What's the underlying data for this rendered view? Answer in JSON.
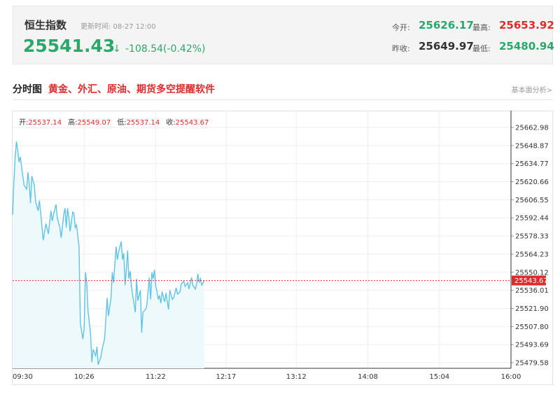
{
  "quote": {
    "name": "恒生指数",
    "update_time": "更新时间: 08-27 12:00",
    "last": "25541.43",
    "arrow": "↓",
    "change": "-108.54(-0.42%)",
    "open_label": "今开:",
    "open_value": "25626.17",
    "high_label": "最高:",
    "high_value": "25653.92",
    "prev_close_label": "昨收:",
    "prev_close_value": "25649.97",
    "low_label": "最低:",
    "low_value": "25480.94"
  },
  "colors": {
    "up": "#e02b2b",
    "down": "#2aa76a",
    "line": "#5ec3e6",
    "area": "#eef9fc",
    "ref_line": "#e02b2b"
  },
  "section": {
    "title": "分时图",
    "promo": "黄金、外汇、原油、期货多空提醒软件",
    "basic_analysis": "基本面分析>"
  },
  "ohlc": {
    "open_label": "开:",
    "open": "25537.14",
    "high_label": "高:",
    "high": "25549.07",
    "low_label": "低:",
    "low": "25537.14",
    "close_label": "收:",
    "close": "25543.67"
  },
  "chart_data": {
    "type": "area",
    "x_ticks": [
      "09:30",
      "10:26",
      "11:22",
      "12:17",
      "13:12",
      "14:08",
      "15:04",
      "16:00"
    ],
    "y_ticks": [
      "25662.98",
      "25648.87",
      "25634.77",
      "25620.66",
      "25606.55",
      "25592.44",
      "25578.33",
      "25564.23",
      "25550.12",
      "25536.01",
      "25521.90",
      "25507.80",
      "25493.69",
      "25479.58"
    ],
    "ylim": [
      25479.58,
      25662.98
    ],
    "current_price_label": "25543.67",
    "current_price": 25543.67,
    "session_start": "09:30",
    "session_end": "16:00",
    "series": [
      {
        "x": [
          "09:30",
          "09:31",
          "09:32",
          "09:33",
          "09:34",
          "09:35",
          "09:36",
          "09:38",
          "09:39",
          "09:41",
          "09:42",
          "09:43",
          "09:44",
          "09:45",
          "09:47",
          "09:48",
          "09:50",
          "09:51",
          "09:52",
          "09:54",
          "09:56",
          "09:58",
          "10:00",
          "10:01",
          "10:02",
          "10:04",
          "10:05",
          "10:07",
          "10:08",
          "10:10",
          "10:11",
          "10:12",
          "10:13",
          "10:14",
          "10:15",
          "10:17",
          "10:18",
          "10:19",
          "10:20",
          "10:22",
          "10:23",
          "10:25",
          "10:26",
          "10:27",
          "10:28",
          "10:29",
          "10:31",
          "10:32",
          "10:33",
          "10:35",
          "10:36",
          "10:37",
          "10:39",
          "10:40",
          "10:42",
          "10:44",
          "10:45",
          "10:47",
          "10:48",
          "10:49",
          "10:51",
          "10:52",
          "10:53",
          "10:55",
          "10:56",
          "10:57",
          "10:58",
          "10:59",
          "11:00",
          "11:01",
          "11:02",
          "11:03",
          "11:04",
          "11:06",
          "11:07",
          "11:08",
          "11:10",
          "11:11",
          "11:12",
          "11:14",
          "11:15",
          "11:17",
          "11:18",
          "11:19",
          "11:20",
          "11:21",
          "11:22",
          "11:23",
          "11:24",
          "11:25",
          "11:26",
          "11:27",
          "11:29",
          "11:30",
          "11:32",
          "11:33",
          "11:35",
          "11:36",
          "11:38",
          "11:39",
          "11:41",
          "11:42",
          "11:44",
          "11:45",
          "11:47",
          "11:48",
          "11:50",
          "11:51",
          "11:53",
          "11:54",
          "11:55",
          "11:56",
          "11:57",
          "11:58",
          "12:00"
        ],
        "y": [
          25595,
          25620,
          25640,
          25652,
          25645,
          25636,
          25640,
          25625,
          25618,
          25615,
          25628,
          25619,
          25604,
          25625,
          25618,
          25605,
          25598,
          25606,
          25596,
          25575,
          25588,
          25580,
          25598,
          25590,
          25595,
          25603,
          25592,
          25585,
          25577,
          25595,
          25600,
          25585,
          25600,
          25593,
          25582,
          25597,
          25596,
          25585,
          25587,
          25570,
          25510,
          25498,
          25506,
          25550,
          25542,
          25520,
          25502,
          25480,
          25490,
          25485,
          25492,
          25478,
          25484,
          25490,
          25498,
          25530,
          25516,
          25530,
          25550,
          25542,
          25570,
          25560,
          25566,
          25574,
          25560,
          25565,
          25540,
          25553,
          25567,
          25545,
          25551,
          25539,
          25532,
          25519,
          25545,
          25528,
          25536,
          25503,
          25519,
          25521,
          25524,
          25546,
          25529,
          25550,
          25545,
          25552,
          25539,
          25535,
          25529,
          25532,
          25526,
          25535,
          25527,
          25534,
          25521,
          25536,
          25529,
          25530,
          25538,
          25533,
          25535,
          25541,
          25543,
          25539,
          25542,
          25537,
          25546,
          25540,
          25537,
          25541,
          25549,
          25542,
          25545,
          25540,
          25543.67
        ]
      }
    ]
  }
}
